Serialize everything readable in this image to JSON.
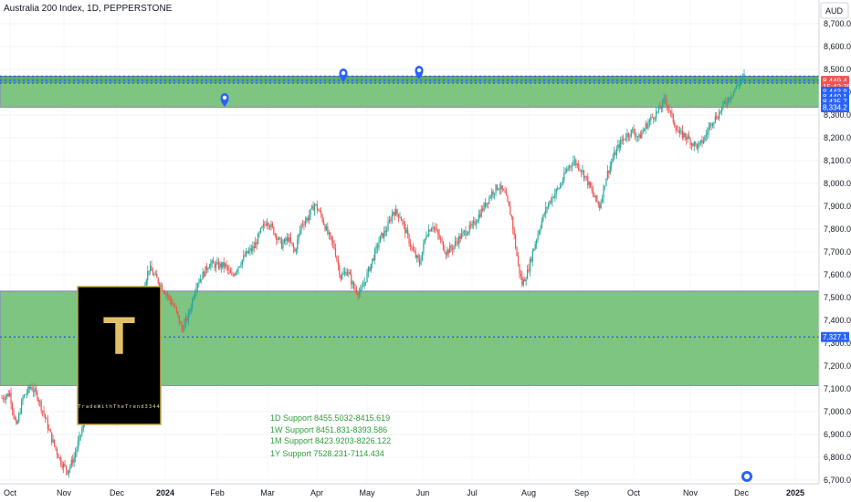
{
  "header": {
    "title": "Australia 200 Index, 1D, PEPPERSTONE",
    "currency": "AUD"
  },
  "logo": {
    "letter": "T",
    "caption": "TradeWithTheTrend3344"
  },
  "colors": {
    "up": "#26a69a",
    "down": "#ef5350",
    "zone_fill": "#4caf50",
    "zone_border": "#8e7cc3",
    "level_line": "#2962ff",
    "support_text": "#2e9d3a"
  },
  "support_notes": [
    "1D Support 8455.5032-8415.619",
    "1W Support 8451.831-8393.586",
    "1M Support 8423.9203-8226.122",
    "1Y Support 7528.231-7114.434"
  ],
  "price_tags": [
    {
      "label": "8,449.4",
      "value": 8449.4,
      "color": "#ef5350"
    },
    {
      "label": "15:42:35",
      "value": 8425,
      "color": "#ef5350"
    },
    {
      "label": "8,443.8",
      "value": 8402,
      "color": "#2962ff"
    },
    {
      "label": "8,440.1",
      "value": 8380,
      "color": "#2962ff"
    },
    {
      "label": "8,435.7",
      "value": 8358,
      "color": "#2962ff"
    },
    {
      "label": "8,334.2",
      "value": 8334.2,
      "color": "#2962ff"
    },
    {
      "label": "7,327.1",
      "value": 7327.1,
      "color": "#2962ff"
    }
  ],
  "chart_data": {
    "type": "candlestick",
    "symbol": "Australia 200 Index",
    "interval": "1D",
    "ylim": [
      6700,
      8750
    ],
    "y_ticks": [
      6700,
      6800,
      6900,
      7000,
      7100,
      7200,
      7300,
      7400,
      7500,
      7600,
      7700,
      7800,
      7900,
      8000,
      8100,
      8200,
      8300,
      8400,
      8500,
      8600,
      8700
    ],
    "y_tick_labels": [
      "6,700.0",
      "6,800.0",
      "6,900.0",
      "7,000.0",
      "7,100.0",
      "7,200.0",
      "7,300.0",
      "7,400.0",
      "7,500.0",
      "7,600.0",
      "7,700.0",
      "7,800.0",
      "7,900.0",
      "8,000.0",
      "8,100.0",
      "8,200.0",
      "8,300.0",
      "8,400.0",
      "8,500.0",
      "8,600.0",
      "8,700.0"
    ],
    "x_ticks": [
      "Oct",
      "Nov",
      "Dec",
      "2024",
      "Feb",
      "Mar",
      "Apr",
      "May",
      "Jun",
      "Jul",
      "Aug",
      "Sep",
      "Oct",
      "Nov",
      "Dec",
      "2025"
    ],
    "zones": [
      {
        "from": 8334.2,
        "to": 8470
      },
      {
        "from": 7114.4,
        "to": 7528.2
      }
    ],
    "dotted_levels": [
      8470,
      8452,
      8440,
      7327.1
    ],
    "close_path": [
      [
        0,
        7060
      ],
      [
        6,
        7080
      ],
      [
        11,
        6930
      ],
      [
        16,
        7060
      ],
      [
        22,
        7110
      ],
      [
        27,
        7070
      ],
      [
        32,
        6990
      ],
      [
        38,
        6880
      ],
      [
        45,
        6780
      ],
      [
        50,
        6740
      ],
      [
        55,
        6800
      ],
      [
        60,
        6900
      ],
      [
        65,
        7000
      ],
      [
        70,
        7040
      ],
      [
        77,
        7150
      ],
      [
        83,
        7250
      ],
      [
        90,
        7330
      ],
      [
        97,
        7400
      ],
      [
        103,
        7470
      ],
      [
        108,
        7550
      ],
      [
        112,
        7630
      ],
      [
        118,
        7580
      ],
      [
        125,
        7520
      ],
      [
        132,
        7450
      ],
      [
        137,
        7360
      ],
      [
        142,
        7420
      ],
      [
        148,
        7560
      ],
      [
        153,
        7600
      ],
      [
        158,
        7650
      ],
      [
        163,
        7640
      ],
      [
        170,
        7640
      ],
      [
        175,
        7590
      ],
      [
        180,
        7640
      ],
      [
        186,
        7690
      ],
      [
        192,
        7720
      ],
      [
        197,
        7790
      ],
      [
        202,
        7840
      ],
      [
        208,
        7780
      ],
      [
        213,
        7730
      ],
      [
        218,
        7760
      ],
      [
        223,
        7700
      ],
      [
        228,
        7820
      ],
      [
        233,
        7850
      ],
      [
        238,
        7910
      ],
      [
        243,
        7860
      ],
      [
        248,
        7780
      ],
      [
        253,
        7720
      ],
      [
        258,
        7590
      ],
      [
        263,
        7620
      ],
      [
        268,
        7540
      ],
      [
        273,
        7520
      ],
      [
        278,
        7600
      ],
      [
        283,
        7680
      ],
      [
        288,
        7760
      ],
      [
        293,
        7800
      ],
      [
        298,
        7880
      ],
      [
        303,
        7860
      ],
      [
        308,
        7780
      ],
      [
        313,
        7700
      ],
      [
        318,
        7650
      ],
      [
        323,
        7780
      ],
      [
        328,
        7820
      ],
      [
        333,
        7760
      ],
      [
        338,
        7700
      ],
      [
        343,
        7720
      ],
      [
        348,
        7760
      ],
      [
        353,
        7790
      ],
      [
        358,
        7810
      ],
      [
        363,
        7860
      ],
      [
        368,
        7910
      ],
      [
        373,
        7960
      ],
      [
        378,
        7990
      ],
      [
        383,
        7950
      ],
      [
        388,
        7850
      ],
      [
        393,
        7640
      ],
      [
        396,
        7560
      ],
      [
        400,
        7610
      ],
      [
        405,
        7720
      ],
      [
        410,
        7820
      ],
      [
        415,
        7900
      ],
      [
        420,
        7950
      ],
      [
        425,
        7990
      ],
      [
        430,
        8060
      ],
      [
        435,
        8100
      ],
      [
        440,
        8070
      ],
      [
        445,
        8020
      ],
      [
        450,
        7950
      ],
      [
        455,
        7900
      ],
      [
        460,
        8030
      ],
      [
        465,
        8110
      ],
      [
        470,
        8170
      ],
      [
        475,
        8210
      ],
      [
        480,
        8230
      ],
      [
        485,
        8200
      ],
      [
        490,
        8250
      ],
      [
        495,
        8290
      ],
      [
        500,
        8320
      ],
      [
        505,
        8370
      ],
      [
        510,
        8290
      ],
      [
        515,
        8220
      ],
      [
        520,
        8210
      ],
      [
        525,
        8180
      ],
      [
        530,
        8160
      ],
      [
        535,
        8200
      ],
      [
        540,
        8270
      ],
      [
        545,
        8300
      ],
      [
        550,
        8350
      ],
      [
        555,
        8390
      ],
      [
        560,
        8430
      ],
      [
        565,
        8470
      ]
    ]
  }
}
